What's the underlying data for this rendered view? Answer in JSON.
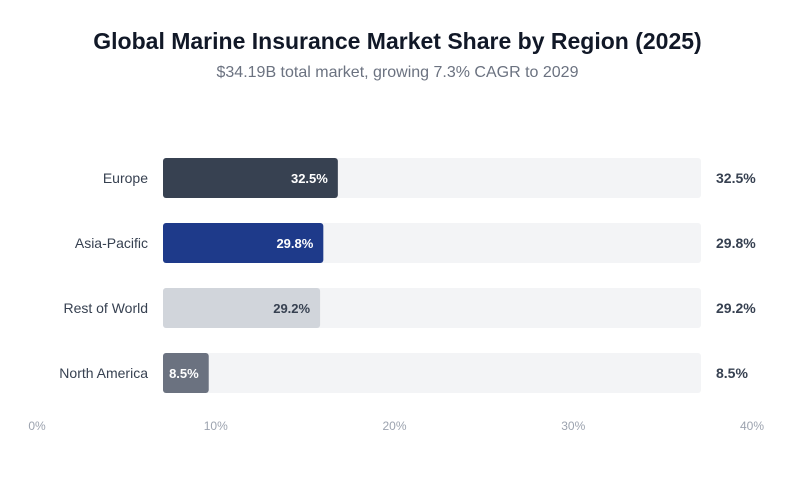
{
  "chart_data": {
    "type": "bar",
    "orientation": "horizontal",
    "title": "Global Marine Insurance Market Share by Region (2025)",
    "subtitle": "$34.19B total market, growing 7.3% CAGR to 2029",
    "categories": [
      "Europe",
      "Asia-Pacific",
      "Rest of World",
      "North America"
    ],
    "values": [
      32.5,
      29.8,
      29.2,
      8.5
    ],
    "value_labels": [
      "32.5%",
      "29.8%",
      "29.2%",
      "8.5%"
    ],
    "colors": [
      "#374151",
      "#1e3a8a",
      "#d1d5db",
      "#6b7280"
    ],
    "label_colors": [
      "#ffffff",
      "#ffffff",
      "#374151",
      "#ffffff"
    ],
    "track_color": "#f3f4f6",
    "xlim": [
      0,
      100
    ],
    "x_ticks": [
      "0%",
      "10%",
      "20%",
      "30%",
      "40%"
    ],
    "grid": false,
    "legend": "none"
  }
}
